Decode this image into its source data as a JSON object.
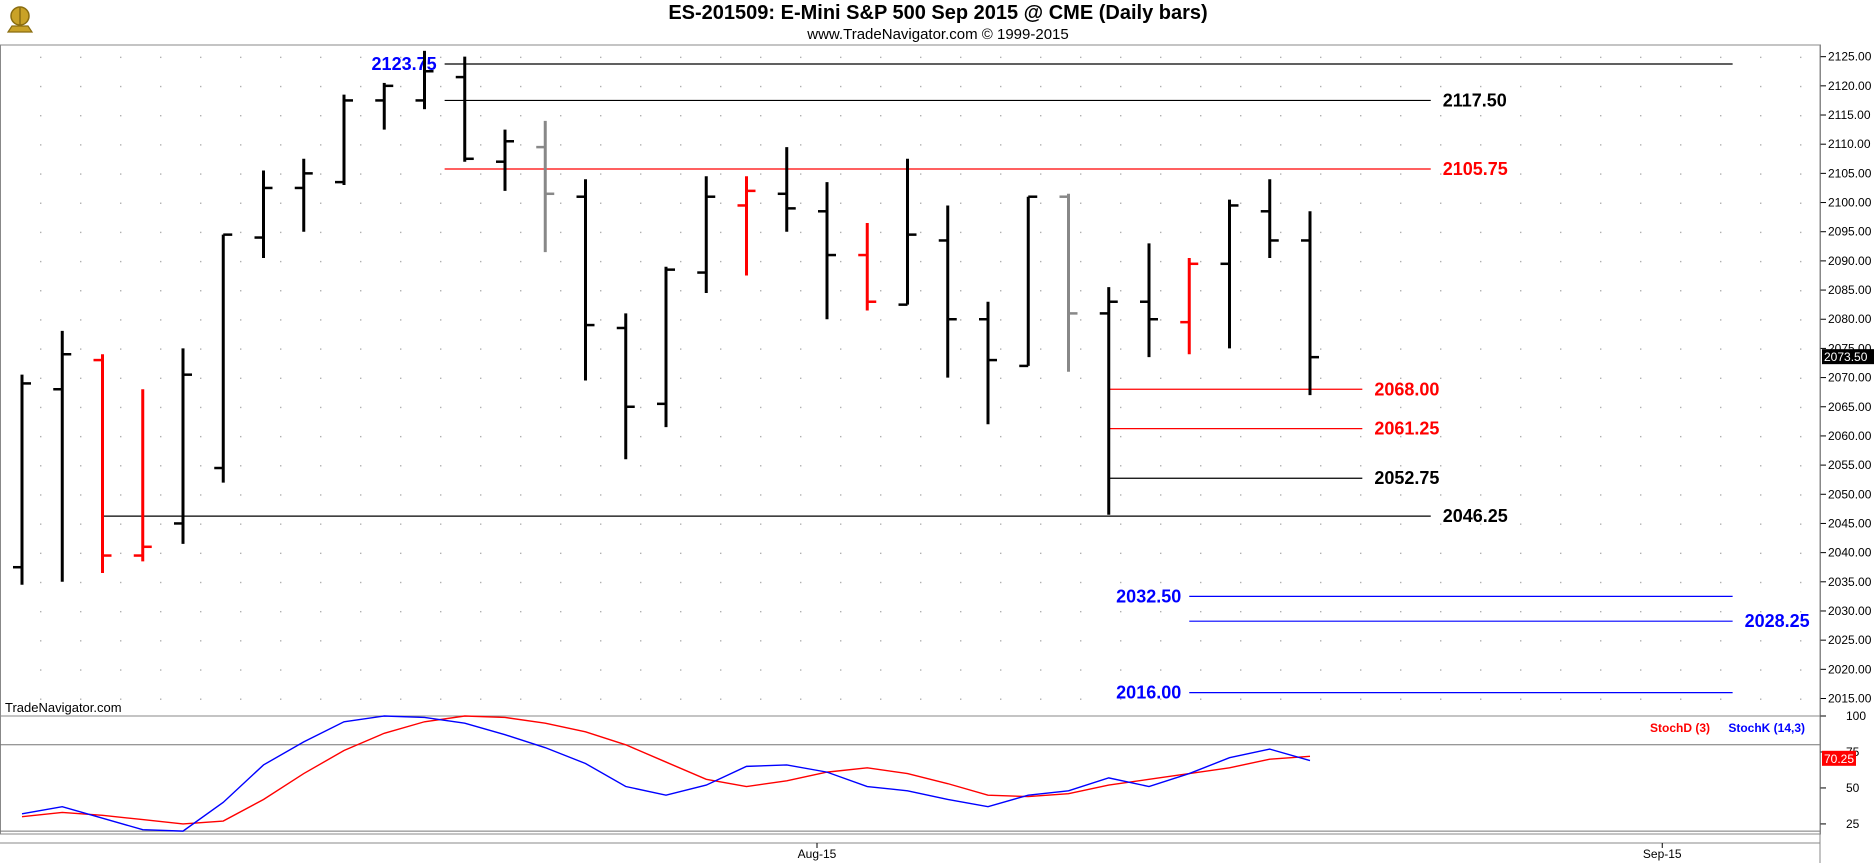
{
  "header": {
    "title": "ES-201509:  E-Mini S&P 500 Sep 2015 @ CME  (Daily bars)",
    "subtitle": "www.TradeNavigator.com © 1999-2015",
    "watermark": "TradeNavigator.com"
  },
  "colors": {
    "up": "#000000",
    "down": "#ff0000",
    "neutral": "#888888",
    "special": "#00cc00",
    "blue": "#0000ff",
    "red": "#ff0000",
    "black": "#000000"
  },
  "chart_data": [
    {
      "type": "bar",
      "subtype": "ohlc",
      "ylim": [
        2012,
        2127
      ],
      "yticks": [
        2015,
        2020,
        2025,
        2030,
        2035,
        2040,
        2045,
        2050,
        2055,
        2060,
        2065,
        2070,
        2075,
        2080,
        2085,
        2090,
        2095,
        2100,
        2105,
        2110,
        2115,
        2120,
        2125
      ],
      "ytick_labels": [
        "2015.00",
        "2020.00",
        "2025.00",
        "2030.00",
        "2035.00",
        "2040.00",
        "2045.00",
        "2050.00",
        "2055.00",
        "2060.00",
        "2065.00",
        "2070.00",
        "2075.00",
        "2080.00",
        "2085.00",
        "2090.00",
        "2095.00",
        "2100.00",
        "2105.00",
        "2110.00",
        "2115.00",
        "2120.00",
        "2125.00"
      ],
      "x_labels": [
        {
          "index": 20,
          "label": "Aug-15"
        },
        {
          "index": 41,
          "label": "Sep-15"
        }
      ],
      "last_price": "2073.50",
      "bars": [
        {
          "o": 2037.5,
          "h": 2070.5,
          "l": 2034.5,
          "c": 2069.0,
          "color": "up"
        },
        {
          "o": 2068.0,
          "h": 2078.0,
          "l": 2035.0,
          "c": 2074.0,
          "color": "up"
        },
        {
          "o": 2073.0,
          "h": 2074.0,
          "l": 2036.5,
          "c": 2039.5,
          "color": "down"
        },
        {
          "o": 2039.5,
          "h": 2068.0,
          "l": 2038.5,
          "c": 2041.0,
          "color": "down"
        },
        {
          "o": 2045.0,
          "h": 2075.0,
          "l": 2041.5,
          "c": 2070.5,
          "color": "up"
        },
        {
          "o": 2054.5,
          "h": 2094.5,
          "l": 2052.0,
          "c": 2094.5,
          "color": "up"
        },
        {
          "o": 2094.0,
          "h": 2105.5,
          "l": 2090.5,
          "c": 2102.5,
          "color": "up"
        },
        {
          "o": 2102.5,
          "h": 2107.5,
          "l": 2095.0,
          "c": 2105.0,
          "color": "up"
        },
        {
          "o": 2103.5,
          "h": 2118.5,
          "l": 2103.0,
          "c": 2117.5,
          "color": "up"
        },
        {
          "o": 2117.5,
          "h": 2120.5,
          "l": 2112.5,
          "c": 2120.0,
          "color": "up"
        },
        {
          "o": 2117.5,
          "h": 2126.0,
          "l": 2116.0,
          "c": 2122.5,
          "color": "up"
        },
        {
          "o": 2121.5,
          "h": 2125.0,
          "l": 2107.0,
          "c": 2107.5,
          "color": "up"
        },
        {
          "o": 2107.0,
          "h": 2112.5,
          "l": 2102.0,
          "c": 2110.5,
          "color": "up"
        },
        {
          "o": 2109.5,
          "h": 2114.0,
          "l": 2091.5,
          "c": 2101.5,
          "color": "neutral"
        },
        {
          "o": 2101.0,
          "h": 2104.0,
          "l": 2069.5,
          "c": 2079.0,
          "color": "up"
        },
        {
          "o": 2078.5,
          "h": 2081.0,
          "l": 2056.0,
          "c": 2065.0,
          "color": "up"
        },
        {
          "o": 2065.5,
          "h": 2089.0,
          "l": 2061.5,
          "c": 2088.5,
          "color": "up"
        },
        {
          "o": 2088.0,
          "h": 2104.5,
          "l": 2084.5,
          "c": 2101.0,
          "color": "up"
        },
        {
          "o": 2099.5,
          "h": 2104.5,
          "l": 2087.5,
          "c": 2102.0,
          "color": "down"
        },
        {
          "o": 2101.5,
          "h": 2109.5,
          "l": 2095.0,
          "c": 2099.0,
          "color": "up"
        },
        {
          "o": 2098.5,
          "h": 2103.5,
          "l": 2080.0,
          "c": 2091.0,
          "color": "up"
        },
        {
          "o": 2091.0,
          "h": 2096.5,
          "l": 2081.5,
          "c": 2083.0,
          "color": "down"
        },
        {
          "o": 2082.5,
          "h": 2107.5,
          "l": 2082.5,
          "c": 2094.5,
          "color": "up"
        },
        {
          "o": 2093.5,
          "h": 2099.5,
          "l": 2070.0,
          "c": 2080.0,
          "color": "up"
        },
        {
          "o": 2080.0,
          "h": 2083.0,
          "l": 2062.0,
          "c": 2073.0,
          "color": "up"
        },
        {
          "o": 2072.0,
          "h": 2101.0,
          "l": 2072.0,
          "c": 2101.0,
          "color": "up"
        },
        {
          "o": 2101.0,
          "h": 2101.5,
          "l": 2071.0,
          "c": 2081.0,
          "color": "neutral"
        },
        {
          "o": 2081.0,
          "h": 2085.5,
          "l": 2046.5,
          "c": 2083.0,
          "color": "up"
        },
        {
          "o": 2083.0,
          "h": 2093.0,
          "l": 2073.5,
          "c": 2080.0,
          "color": "up"
        },
        {
          "o": 2079.5,
          "h": 2090.5,
          "l": 2074.0,
          "c": 2089.5,
          "color": "down"
        },
        {
          "o": 2089.5,
          "h": 2100.5,
          "l": 2075.0,
          "c": 2099.5,
          "color": "up"
        },
        {
          "o": 2098.5,
          "h": 2104.0,
          "l": 2090.5,
          "c": 2093.5,
          "color": "up"
        },
        {
          "o": 2093.5,
          "h": 2098.5,
          "l": 2067.0,
          "c": 2073.5,
          "color": "up"
        }
      ],
      "levels": [
        {
          "value": 2123.75,
          "label": "2123.75",
          "color": "blue",
          "line_color": "black",
          "start": 10.5,
          "end": 42.5,
          "label_at": "left"
        },
        {
          "value": 2117.5,
          "label": "2117.50",
          "color": "black",
          "line_color": "black",
          "start": 10.5,
          "end": 35.0,
          "label_at": "right"
        },
        {
          "value": 2105.75,
          "label": "2105.75",
          "color": "red",
          "line_color": "red",
          "start": 10.5,
          "end": 35.0,
          "label_at": "right"
        },
        {
          "value": 2068.0,
          "label": "2068.00",
          "color": "red",
          "line_color": "red",
          "start": 27.0,
          "end": 33.3,
          "label_at": "right"
        },
        {
          "value": 2061.25,
          "label": "2061.25",
          "color": "red",
          "line_color": "red",
          "start": 27.0,
          "end": 33.3,
          "label_at": "right"
        },
        {
          "value": 2052.75,
          "label": "2052.75",
          "color": "black",
          "line_color": "black",
          "start": 27.0,
          "end": 33.3,
          "label_at": "right"
        },
        {
          "value": 2046.25,
          "label": "2046.25",
          "color": "black",
          "line_color": "black",
          "start": 2.0,
          "end": 35.0,
          "label_at": "right"
        },
        {
          "value": 2032.5,
          "label": "2032.50",
          "color": "blue",
          "line_color": "blue",
          "start": 29.0,
          "end": 42.5,
          "label_at": "left"
        },
        {
          "value": 2028.25,
          "label": "2028.25",
          "color": "blue",
          "line_color": "blue",
          "start": 29.0,
          "end": 42.5,
          "label_at": "right"
        },
        {
          "value": 2016.0,
          "label": "2016.00",
          "color": "blue",
          "line_color": "blue",
          "start": 29.0,
          "end": 42.5,
          "label_at": "left"
        }
      ]
    },
    {
      "type": "line",
      "ylim": [
        18,
        100
      ],
      "yticks": [
        25,
        50,
        75,
        100
      ],
      "ytick_labels": [
        "25",
        "50",
        "75",
        "100"
      ],
      "ref_lines": [
        80,
        20
      ],
      "last_value": "70.25",
      "series": [
        {
          "name": "StochD (3)",
          "color": "red",
          "values": [
            30,
            33,
            31,
            28,
            25,
            27,
            42,
            60,
            76,
            88,
            96,
            100,
            99,
            95,
            89,
            80,
            68,
            56,
            51,
            55,
            61,
            64,
            60,
            53,
            45,
            44,
            46,
            52,
            56,
            60,
            64,
            70,
            72
          ]
        },
        {
          "name": "StochK (14,3)",
          "color": "blue",
          "values": [
            32,
            37,
            29,
            21,
            20,
            40,
            66,
            82,
            96,
            100,
            99,
            95,
            87,
            78,
            67,
            51,
            45,
            52,
            65,
            66,
            61,
            51,
            48,
            42,
            37,
            45,
            48,
            57,
            51,
            60,
            71,
            77,
            69
          ]
        }
      ]
    }
  ]
}
